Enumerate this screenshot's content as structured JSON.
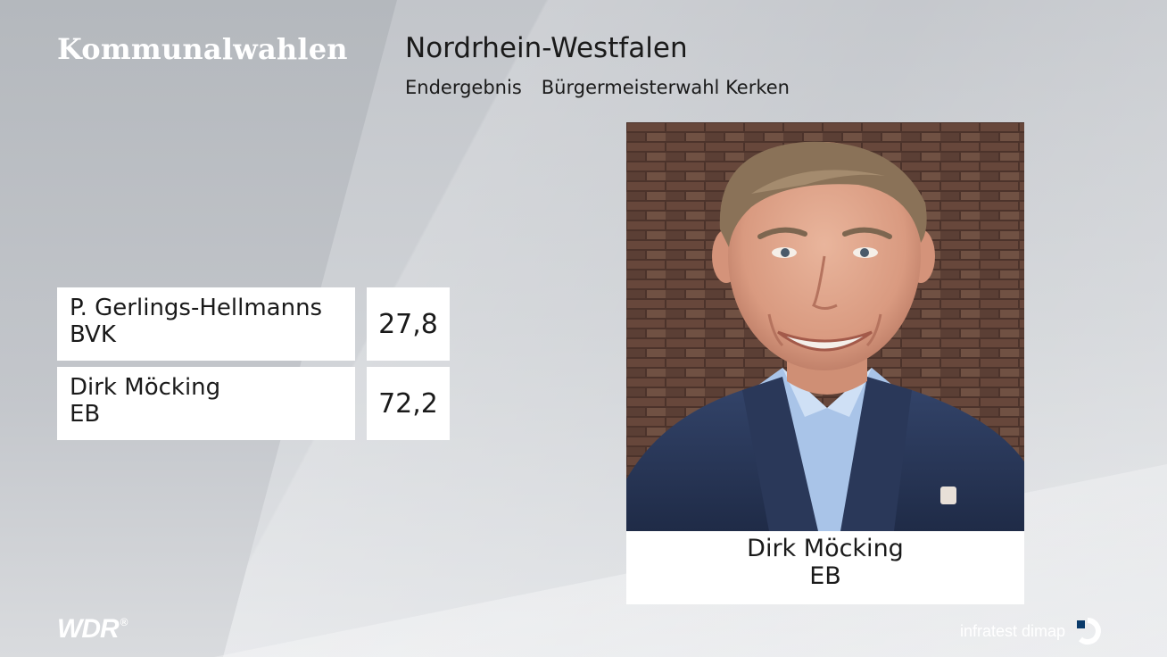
{
  "header": {
    "brand_title": "Kommunalwahlen",
    "region": "Nordrhein-Westfalen",
    "result_type": "Endergebnis",
    "election": "Bürgermeisterwahl Kerken"
  },
  "results": [
    {
      "candidate": "P. Gerlings-Hellmanns",
      "party": "BVK",
      "value": "27,8"
    },
    {
      "candidate": "Dirk Möcking",
      "party": "EB",
      "value": "72,2"
    }
  ],
  "winner": {
    "name": "Dirk Möcking",
    "party": "EB"
  },
  "footer": {
    "broadcaster_logo": "WDR",
    "broadcaster_reg": "®",
    "pollster": "infratest dimap"
  },
  "colors": {
    "text": "#1a1a1a",
    "panel": "#ffffff",
    "jacket": "#2b3a5c",
    "shirt": "#a9c4e8",
    "brick": "#6e4a3e"
  },
  "icons": {
    "pollster_mark": "infratest-dimap-logo-icon"
  }
}
